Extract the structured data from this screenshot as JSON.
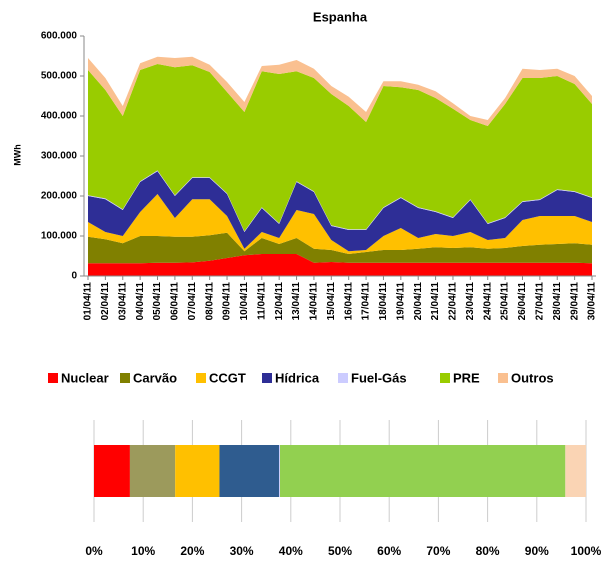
{
  "chart_data": [
    {
      "type": "stacked-area",
      "title": "Espanha",
      "y_label": "MWh",
      "categories": [
        "01/04/11",
        "02/04/11",
        "03/04/11",
        "04/04/11",
        "05/04/11",
        "06/04/11",
        "07/04/11",
        "08/04/11",
        "09/04/11",
        "10/04/11",
        "11/04/11",
        "12/04/11",
        "13/04/11",
        "14/04/11",
        "15/04/11",
        "16/04/11",
        "17/04/11",
        "18/04/11",
        "19/04/11",
        "20/04/11",
        "21/04/11",
        "22/04/11",
        "23/04/11",
        "24/04/11",
        "25/04/11",
        "26/04/11",
        "27/04/11",
        "28/04/11",
        "29/04/11",
        "30/04/11"
      ],
      "series": [
        {
          "name": "Nuclear",
          "color": "#ff0000",
          "values": [
            32000,
            32000,
            32000,
            32000,
            33000,
            33000,
            34000,
            38000,
            45000,
            52000,
            55000,
            55000,
            55000,
            33000,
            35000,
            33000,
            33000,
            33000,
            33000,
            33000,
            33000,
            33000,
            33000,
            33000,
            33000,
            33000,
            33000,
            33000,
            33000,
            32000
          ]
        },
        {
          "name": "Carvão",
          "color": "#808000",
          "values": [
            66000,
            60000,
            50000,
            68000,
            67000,
            65000,
            64000,
            64000,
            63000,
            10000,
            40000,
            25000,
            40000,
            35000,
            30000,
            22000,
            27000,
            32000,
            32000,
            35000,
            39000,
            37000,
            39000,
            35000,
            37000,
            42000,
            45000,
            47000,
            49000,
            46000
          ]
        },
        {
          "name": "CCGT",
          "color": "#ffc000",
          "values": [
            37000,
            18000,
            18000,
            60000,
            105000,
            47000,
            94000,
            90000,
            42000,
            6000,
            15000,
            15000,
            70000,
            87000,
            25000,
            7000,
            5000,
            35000,
            55000,
            27000,
            33000,
            30000,
            38000,
            22000,
            25000,
            65000,
            72000,
            70000,
            68000,
            57000
          ]
        },
        {
          "name": "Hídrica",
          "color": "#2e2e96",
          "values": [
            65000,
            82000,
            65000,
            75000,
            57000,
            55000,
            53000,
            53000,
            55000,
            42000,
            60000,
            35000,
            70000,
            55000,
            35000,
            53000,
            50000,
            70000,
            75000,
            75000,
            55000,
            45000,
            80000,
            40000,
            50000,
            45000,
            40000,
            65000,
            60000,
            60000
          ]
        },
        {
          "name": "Fuel-Gás",
          "color": "#ccccff",
          "values": [
            2000,
            2000,
            2000,
            2000,
            2000,
            2000,
            2000,
            2000,
            2000,
            2000,
            2000,
            2000,
            2000,
            2000,
            2000,
            2000,
            2000,
            2000,
            2000,
            2000,
            2000,
            2000,
            2000,
            2000,
            2000,
            2000,
            2000,
            2000,
            2000,
            2000
          ]
        },
        {
          "name": "PRE",
          "color": "#99cc00",
          "values": [
            313000,
            271000,
            233000,
            278000,
            266000,
            320000,
            280000,
            263000,
            253000,
            298000,
            340000,
            373000,
            275000,
            283000,
            328000,
            308000,
            268000,
            303000,
            275000,
            293000,
            283000,
            271000,
            198000,
            243000,
            283000,
            308000,
            303000,
            283000,
            268000,
            233000
          ]
        },
        {
          "name": "Outros",
          "color": "#fac090",
          "values": [
            30000,
            30000,
            25000,
            17000,
            18000,
            23000,
            21000,
            18000,
            25000,
            25000,
            13000,
            23000,
            28000,
            23000,
            20000,
            23000,
            25000,
            12000,
            15000,
            13000,
            17000,
            14000,
            10000,
            15000,
            15000,
            23000,
            20000,
            18000,
            20000,
            20000
          ]
        }
      ],
      "ylim": [
        0,
        600000
      ],
      "yticks": [
        0,
        {
          "value": 100000,
          "label": "100.000"
        },
        {
          "value": 200000,
          "label": "200.000"
        },
        {
          "value": 300000,
          "label": "300.000"
        },
        {
          "value": 400000,
          "label": "400.000"
        },
        {
          "value": 500000,
          "label": "500.000"
        },
        {
          "value": 600000,
          "label": "600.000"
        }
      ],
      "legend": "bottom"
    },
    {
      "type": "stacked-hbar-100",
      "series": [
        {
          "color": "#ff0000",
          "values": [
            7.3
          ]
        },
        {
          "color": "#9c9a5c",
          "values": [
            9.2
          ]
        },
        {
          "color": "#ffc000",
          "values": [
            9
          ]
        },
        {
          "color": "#2f5c8f",
          "values": [
            12.1
          ]
        },
        {
          "color": "#ccccff",
          "values": [
            0.2
          ]
        },
        {
          "color": "#92d050",
          "values": [
            58
          ]
        },
        {
          "color": "#fad4b4",
          "values": [
            4.2
          ]
        }
      ],
      "xlim": [
        0,
        100
      ],
      "xticks": [
        {
          "value": 0,
          "label": "0%"
        },
        {
          "value": 10,
          "label": "10%"
        },
        {
          "value": 20,
          "label": "20%"
        },
        {
          "value": 30,
          "label": "30%"
        },
        {
          "value": 40,
          "label": "40%"
        },
        {
          "value": 50,
          "label": "50%"
        },
        {
          "value": 60,
          "label": "60%"
        },
        {
          "value": 70,
          "label": "70%"
        },
        {
          "value": 80,
          "label": "80%"
        },
        {
          "value": 90,
          "label": "90%"
        },
        {
          "value": 100,
          "label": "100%"
        }
      ],
      "grid": true
    }
  ]
}
